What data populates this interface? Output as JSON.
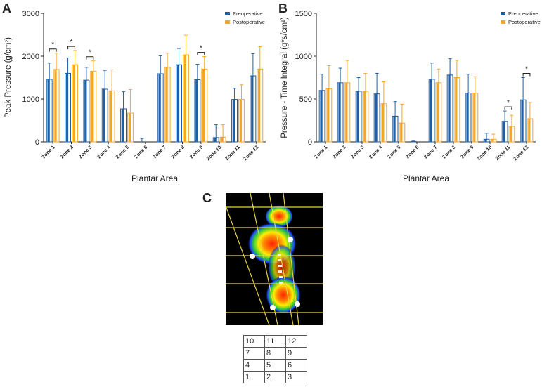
{
  "panel_labels": {
    "a": "A",
    "b": "B",
    "c": "C"
  },
  "colors": {
    "pre": "#1f5fa5",
    "post": "#f5a623",
    "bracket": "#222222"
  },
  "chart_data": [
    {
      "id": "A",
      "type": "bar",
      "title": "",
      "xlabel": "Plantar Area",
      "ylabel": "Peak Pressure (g/cm²)",
      "ylim": [
        0,
        3000
      ],
      "yticks": [
        0,
        1000,
        2000,
        3000
      ],
      "categories": [
        "Zone 1",
        "Zone 2",
        "Zone 3",
        "Zone 4",
        "Zone 5",
        "Zone 6",
        "Zone 7",
        "Zone 8",
        "Zone 9",
        "Zone 10",
        "Zone 11",
        "Zone 12"
      ],
      "legend": [
        "Preoperative",
        "Postoperative"
      ],
      "legend_position": "top-right",
      "series": [
        {
          "name": "Preoperative",
          "values": [
            1460,
            1600,
            1440,
            1230,
            770,
            0,
            1590,
            1800,
            1450,
            100,
            990,
            1540
          ],
          "errors": [
            380,
            360,
            300,
            440,
            400,
            80,
            420,
            380,
            360,
            300,
            260,
            520
          ]
        },
        {
          "name": "Postoperative",
          "values": [
            1690,
            1800,
            1650,
            1190,
            670,
            0,
            1740,
            2030,
            1700,
            110,
            990,
            1700
          ],
          "errors": [
            380,
            330,
            240,
            490,
            550,
            0,
            330,
            460,
            290,
            290,
            340,
            520
          ]
        }
      ],
      "significance": [
        {
          "zone_index": 0,
          "label": "*"
        },
        {
          "zone_index": 1,
          "label": "*"
        },
        {
          "zone_index": 2,
          "label": "*"
        },
        {
          "zone_index": 8,
          "label": "*"
        }
      ]
    },
    {
      "id": "B",
      "type": "bar",
      "title": "",
      "xlabel": "Plantar Area",
      "ylabel": "Pressure - Time Integral (g*s/cm²)",
      "ylim": [
        0,
        1500
      ],
      "yticks": [
        0,
        500,
        1000,
        1500
      ],
      "categories": [
        "Zone 1",
        "Zone 2",
        "Zone 3",
        "Zone 4",
        "Zone 5",
        "Zone 6",
        "Zone 7",
        "Zone 8",
        "Zone 9",
        "Zone 10",
        "Zone 11",
        "Zone 12"
      ],
      "legend": [
        "Preoperative",
        "Postoperative"
      ],
      "legend_position": "top-right",
      "series": [
        {
          "name": "Preoperative",
          "values": [
            600,
            690,
            590,
            560,
            300,
            5,
            730,
            780,
            570,
            30,
            240,
            490
          ],
          "errors": [
            190,
            170,
            160,
            240,
            170,
            5,
            190,
            190,
            220,
            70,
            120,
            260
          ]
        },
        {
          "name": "Postoperative",
          "values": [
            620,
            690,
            590,
            450,
            220,
            0,
            690,
            750,
            570,
            30,
            180,
            270
          ],
          "errors": [
            270,
            260,
            210,
            250,
            220,
            0,
            160,
            200,
            190,
            60,
            130,
            190
          ]
        }
      ],
      "significance": [
        {
          "zone_index": 10,
          "label": "*"
        },
        {
          "zone_index": 11,
          "label": "*"
        }
      ]
    }
  ],
  "zone_grid": [
    [
      "10",
      "11",
      "12"
    ],
    [
      "7",
      "8",
      "9"
    ],
    [
      "4",
      "5",
      "6"
    ],
    [
      "1",
      "2",
      "3"
    ]
  ]
}
